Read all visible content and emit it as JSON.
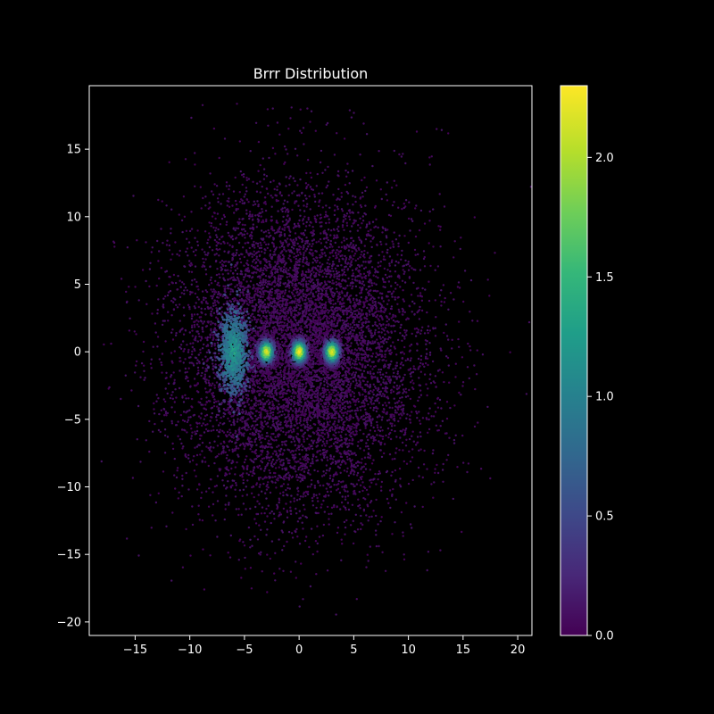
{
  "chart_data": {
    "type": "scatter",
    "title": "Brrr Distribution",
    "xlabel": "",
    "ylabel": "",
    "xlim": [
      -19.2,
      21.3
    ],
    "ylim": [
      -21,
      19.7
    ],
    "xticks": [
      -15,
      -10,
      -5,
      0,
      5,
      10,
      15,
      20
    ],
    "yticks": [
      -20,
      -15,
      -10,
      -5,
      0,
      5,
      10,
      15
    ],
    "xtick_labels": [
      "−15",
      "−10",
      "−5",
      "0",
      "5",
      "10",
      "15",
      "20"
    ],
    "ytick_labels": [
      "−20",
      "−15",
      "−10",
      "−5",
      "0",
      "5",
      "10",
      "15"
    ],
    "grid": false,
    "background_color": "#000000",
    "colormap": "viridis",
    "colorbar": {
      "range": [
        0.0,
        2.3
      ],
      "ticks": [
        0.0,
        0.5,
        1.0,
        1.5,
        2.0
      ],
      "tick_labels": [
        "0.0",
        "0.5",
        "1.0",
        "1.5",
        "2.0"
      ]
    },
    "series": [
      {
        "component": "diffuse-background",
        "center": [
          0,
          0
        ],
        "sigma": [
          5.5,
          5.8
        ],
        "approx_count": 9000,
        "value_range": [
          0.0,
          0.25
        ]
      },
      {
        "component": "dense-core",
        "center": [
          -6,
          0
        ],
        "spread": [
          0.7,
          1.6
        ],
        "approx_count": 900,
        "value_range": [
          0.4,
          1.3
        ]
      },
      {
        "component": "hotspot",
        "center": [
          -3,
          0
        ],
        "spread": [
          0.5,
          0.6
        ],
        "approx_count": 500,
        "peak_value": 2.2
      },
      {
        "component": "hotspot",
        "center": [
          0,
          0
        ],
        "spread": [
          0.5,
          0.6
        ],
        "approx_count": 500,
        "peak_value": 2.3
      },
      {
        "component": "hotspot",
        "center": [
          3,
          0
        ],
        "spread": [
          0.5,
          0.6
        ],
        "approx_count": 500,
        "peak_value": 2.2
      }
    ]
  }
}
